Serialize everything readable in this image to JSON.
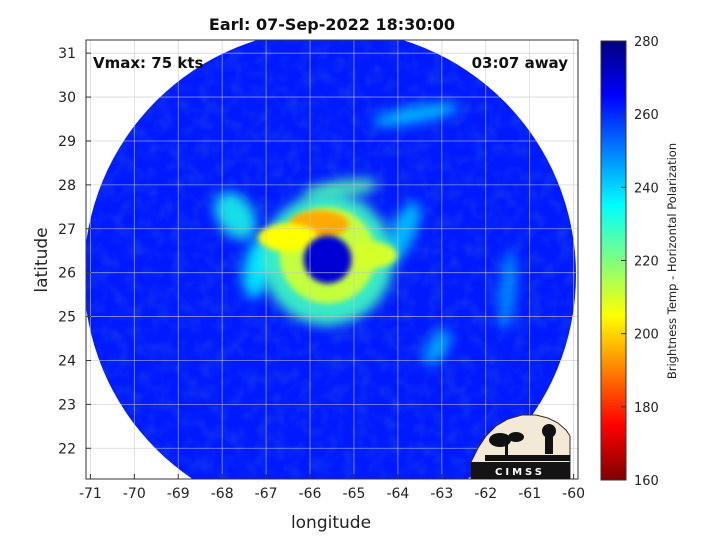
{
  "title": "Earl: 07-Sep-2022 18:30:00",
  "vmax_label": "Vmax: 75 kts",
  "time_label": "03:07 away",
  "xlabel": "longitude",
  "ylabel": "latitude",
  "colorbar_label": "Brightness Temp - Horizontal Polarization",
  "logo_text": "CIMSS",
  "x_ticks": [
    "-71",
    "-70",
    "-69",
    "-68",
    "-67",
    "-66",
    "-65",
    "-64",
    "-63",
    "-62",
    "-61",
    "-60"
  ],
  "y_ticks": [
    "31",
    "30",
    "29",
    "28",
    "27",
    "26",
    "25",
    "24",
    "23",
    "22"
  ],
  "cb_ticks": [
    "280",
    "260",
    "240",
    "220",
    "200",
    "180",
    "160"
  ],
  "chart_data": {
    "type": "heatmap",
    "title": "Earl: 07-Sep-2022 18:30:00",
    "xlabel": "longitude",
    "ylabel": "latitude",
    "xlim": [
      -71.1,
      -59.9
    ],
    "ylim": [
      21.3,
      31.3
    ],
    "clim": [
      160,
      280
    ],
    "colorbar_label": "Brightness Temp - Horizontal Polarization",
    "colormap": "jet",
    "storm_center": {
      "lon": -65.6,
      "lat": 26.3
    },
    "swath_center": {
      "lon": -65.5,
      "lat": 26.6
    },
    "vmax_kts": 75,
    "time_offset": "03:07 away",
    "background_tb": 262,
    "features": [
      {
        "name": "eye",
        "lon": -65.6,
        "lat": 26.3,
        "tb": 270
      },
      {
        "name": "eyewall-north",
        "lon": -65.8,
        "lat": 27.1,
        "tb": 195
      },
      {
        "name": "eyewall-northwest",
        "lon": -66.5,
        "lat": 26.8,
        "tb": 205
      },
      {
        "name": "eyewall-east",
        "lon": -64.7,
        "lat": 26.4,
        "tb": 210
      },
      {
        "name": "inner-band-north",
        "lon": -65.3,
        "lat": 27.9,
        "tb": 225
      },
      {
        "name": "band-northwest",
        "lon": -67.7,
        "lat": 27.3,
        "tb": 232
      },
      {
        "name": "band-west",
        "lon": -67.2,
        "lat": 26.1,
        "tb": 235
      },
      {
        "name": "band-east",
        "lon": -63.9,
        "lat": 26.9,
        "tb": 240
      },
      {
        "name": "band-northeast",
        "lon": -63.6,
        "lat": 29.6,
        "tb": 240
      },
      {
        "name": "band-southeast",
        "lon": -63.1,
        "lat": 24.3,
        "tb": 243
      },
      {
        "name": "band-far-east",
        "lon": -61.5,
        "lat": 25.6,
        "tb": 246
      }
    ]
  }
}
